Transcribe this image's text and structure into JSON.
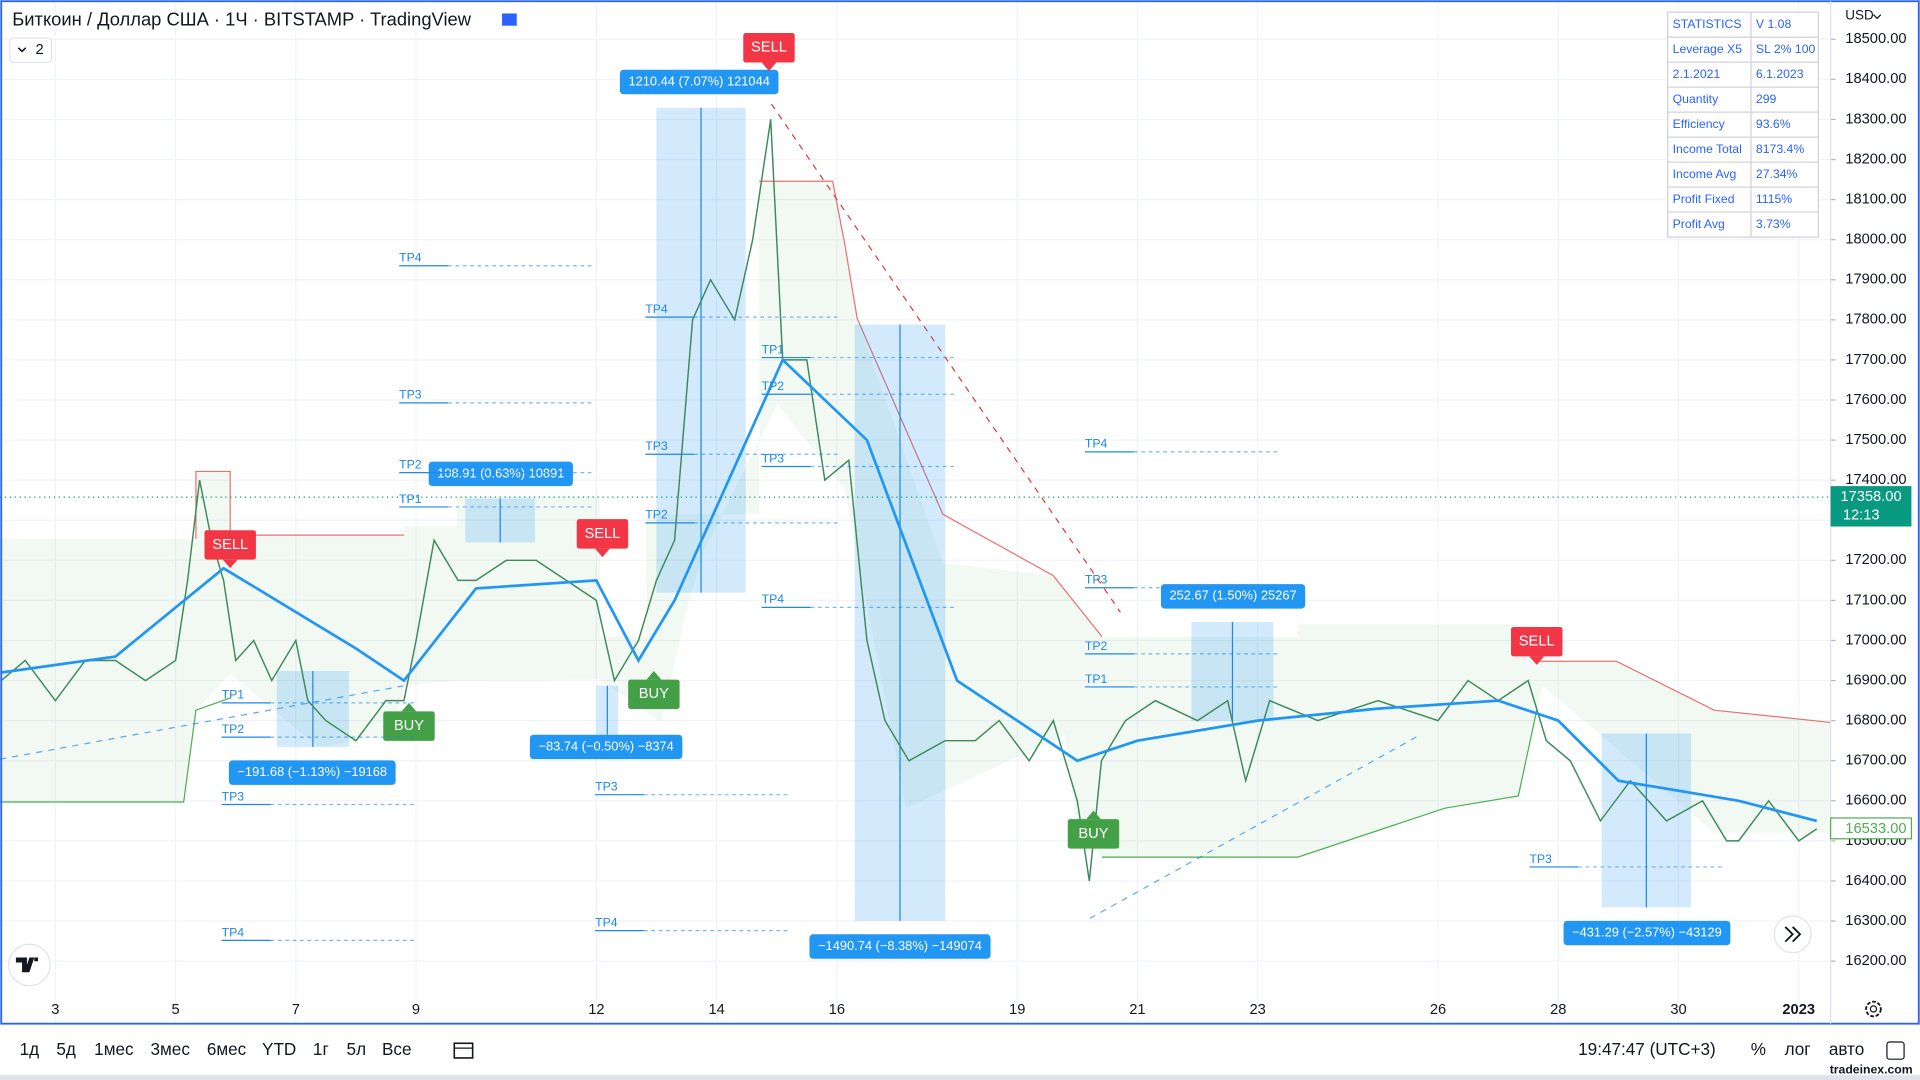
{
  "header": {
    "title": "Биткоин / Доллар США · 1Ч · BITSTAMP · TradingView",
    "indicator_count": "2",
    "currency": "USD"
  },
  "stats": {
    "rows": [
      [
        "STATISTICS",
        "V 1.08"
      ],
      [
        "Leverage X5",
        "SL 2% 100"
      ],
      [
        "2.1.2021",
        "6.1.2023"
      ],
      [
        "Quantity",
        "299"
      ],
      [
        "Efficiency",
        "93.6%"
      ],
      [
        "Income Total",
        "8173.4%"
      ],
      [
        "Income Avg",
        "27.34%"
      ],
      [
        "Profit Fixed",
        "1115%"
      ],
      [
        "Profit Avg",
        "3.73%"
      ]
    ]
  },
  "chart_data": {
    "type": "line",
    "xlim": [
      2.08,
      32.53
    ],
    "xticks": [
      3,
      5,
      7,
      9,
      12,
      14,
      16,
      19,
      21,
      23,
      26,
      28,
      30,
      {
        "value": 32,
        "label": "2023"
      }
    ],
    "ylim": [
      16047,
      18598
    ],
    "yticks": [
      {
        "value": 16200,
        "label": "16200.00"
      },
      {
        "value": 16300,
        "label": "16300.00"
      },
      {
        "value": 16400,
        "label": "16400.00"
      },
      {
        "value": 16500,
        "label": "16500.00"
      },
      {
        "value": 16600,
        "label": "16600.00"
      },
      {
        "value": 16700,
        "label": "16700.00"
      },
      {
        "value": 16800,
        "label": "16800.00"
      },
      {
        "value": 16900,
        "label": "16900.00"
      },
      {
        "value": 17000,
        "label": "17000.00"
      },
      {
        "value": 17100,
        "label": "17100.00"
      },
      {
        "value": 17200,
        "label": "17200.00"
      },
      {
        "value": 17300,
        "label": "17300.00"
      },
      {
        "value": 17400,
        "label": "17400.00"
      },
      {
        "value": 17500,
        "label": "17500.00"
      },
      {
        "value": 17600,
        "label": "17600.00"
      },
      {
        "value": 17700,
        "label": "17700.00"
      },
      {
        "value": 17800,
        "label": "17800.00"
      },
      {
        "value": 17900,
        "label": "17900.00"
      },
      {
        "value": 18000,
        "label": "18000.00"
      },
      {
        "value": 18100,
        "label": "18100.00"
      },
      {
        "value": 18200,
        "label": "18200.00"
      },
      {
        "value": 18300,
        "label": "18300.00"
      },
      {
        "value": 18400,
        "label": "18400.00"
      },
      {
        "value": 18500,
        "label": "18500.00"
      }
    ],
    "grid": true,
    "series": [
      {
        "color": "#3d8b5a",
        "x": [
          2.1,
          2.5,
          3,
          3.5,
          4,
          4.5,
          5,
          5.2,
          5.4,
          5.6,
          5.8,
          6,
          6.3,
          6.6,
          7,
          7.2,
          7.5,
          8,
          8.5,
          8.8,
          9,
          9.3,
          9.7,
          10,
          10.5,
          11,
          11.5,
          12,
          12.3,
          12.7,
          13,
          13.3,
          13.6,
          13.9,
          14.3,
          14.6,
          14.9,
          15.1,
          15.5,
          15.8,
          16.2,
          16.5,
          16.8,
          17.2,
          17.8,
          18.3,
          18.7,
          19.2,
          19.6,
          20,
          20.2,
          20.4,
          20.8,
          21.3,
          22,
          22.5,
          22.8,
          23.2,
          24,
          25,
          26,
          26.5,
          27,
          27.5,
          27.8,
          28.2,
          28.7,
          29.2,
          29.8,
          30.4,
          30.8,
          31,
          31.5,
          32,
          32.3
        ],
        "values": [
          16900,
          16950,
          16850,
          16950,
          16950,
          16900,
          16950,
          17150,
          17400,
          17250,
          17150,
          16950,
          17000,
          16900,
          17000,
          16850,
          16800,
          16750,
          16850,
          16850,
          17000,
          17250,
          17150,
          17150,
          17200,
          17200,
          17150,
          17100,
          16900,
          17000,
          17150,
          17250,
          17800,
          17900,
          17800,
          18000,
          18300,
          17700,
          17700,
          17400,
          17450,
          17000,
          16800,
          16700,
          16750,
          16750,
          16800,
          16700,
          16800,
          16600,
          16400,
          16700,
          16800,
          16850,
          16800,
          16850,
          16650,
          16850,
          16800,
          16850,
          16800,
          16900,
          16850,
          16900,
          16750,
          16700,
          16550,
          16650,
          16550,
          16600,
          16500,
          16500,
          16600,
          16500,
          16530
        ]
      },
      {
        "color": "#2196f3",
        "x": [
          2.1,
          4,
          5.8,
          8,
          8.8,
          10,
          12,
          12.7,
          13.3,
          14.5,
          15.1,
          16.5,
          18,
          19,
          20,
          21,
          23,
          25,
          27,
          28,
          29,
          31,
          32.3
        ],
        "values": [
          16920,
          16960,
          17180,
          16980,
          16900,
          17130,
          17150,
          16950,
          17100,
          17500,
          17700,
          17500,
          16900,
          16800,
          16700,
          16750,
          16800,
          16830,
          16850,
          16800,
          16650,
          16600,
          16550
        ]
      }
    ],
    "price_labels": {
      "last": "17358.00",
      "countdown": "12:13",
      "indicator": "16533.00"
    },
    "signals": [
      "SELL",
      "SELL",
      "SELL",
      "SELL",
      "BUY",
      "BUY",
      "BUY"
    ],
    "trades": [
      "1210.44 (7.07%) 121044",
      "108.91 (0.63%) 10891",
      "−191.68 (−1.13%) −19168",
      "−83.74 (−0.50%) −8374",
      "−1490.74 (−8.38%) −149074",
      "252.67 (1.50%) 25267",
      "−431.29 (−2.57%) −43129"
    ],
    "targets": [
      "TP4",
      "TP3",
      "TP2",
      "TP1",
      "TP1",
      "TP2",
      "TP3",
      "TP4",
      "TP4",
      "TP3",
      "TP2",
      "TP1",
      "TP2",
      "TP3",
      "TP4",
      "TP4",
      "TP3",
      "TP2",
      "TP1",
      "TP3",
      "TP4",
      "TP3"
    ]
  },
  "toolbar": {
    "ranges": [
      "1д",
      "5д",
      "1мес",
      "3мес",
      "6мес",
      "YTD",
      "1г",
      "5л",
      "Все"
    ],
    "clock": "19:47:47 (UTC+3)",
    "options": [
      "%",
      "лог",
      "авто"
    ]
  },
  "watermark": "tradeinex.com"
}
